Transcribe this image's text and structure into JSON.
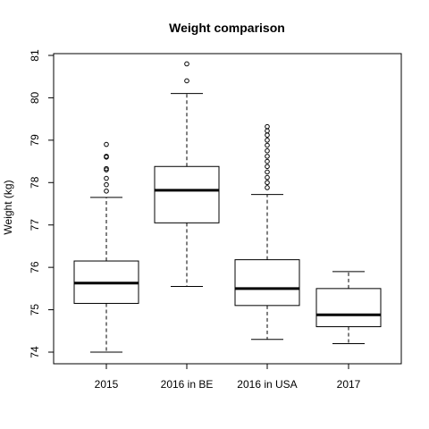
{
  "chart_data": {
    "type": "box",
    "title": "Weight comparison",
    "xlabel": "",
    "ylabel": "Weight (kg)",
    "ylim": [
      73.75,
      81.2
    ],
    "yticks": [
      74,
      75,
      76,
      77,
      78,
      79,
      80,
      81
    ],
    "grid": false,
    "categories": [
      "2015",
      "2016 in BE",
      "2016 in USA",
      "2017"
    ],
    "boxes": [
      {
        "min": 74.0,
        "q1": 75.15,
        "median": 75.63,
        "q3": 76.15,
        "max": 77.65,
        "outliers": [
          77.8,
          77.95,
          78.1,
          78.3,
          78.33,
          78.6,
          78.62,
          78.9
        ]
      },
      {
        "min": 75.55,
        "q1": 77.05,
        "median": 77.82,
        "q3": 78.38,
        "max": 80.1,
        "outliers": [
          80.4,
          80.8
        ]
      },
      {
        "min": 74.3,
        "q1": 75.1,
        "median": 75.5,
        "q3": 76.18,
        "max": 77.72,
        "outliers": [
          77.88,
          78.0,
          78.12,
          78.25,
          78.38,
          78.5,
          78.62,
          78.75,
          78.88,
          79.0,
          79.12,
          79.22,
          79.32
        ]
      },
      {
        "min": 74.2,
        "q1": 74.6,
        "median": 74.88,
        "q3": 75.5,
        "max": 75.9,
        "outliers": []
      }
    ],
    "colors": {
      "stroke": "#000000",
      "fill": "#ffffff"
    }
  }
}
